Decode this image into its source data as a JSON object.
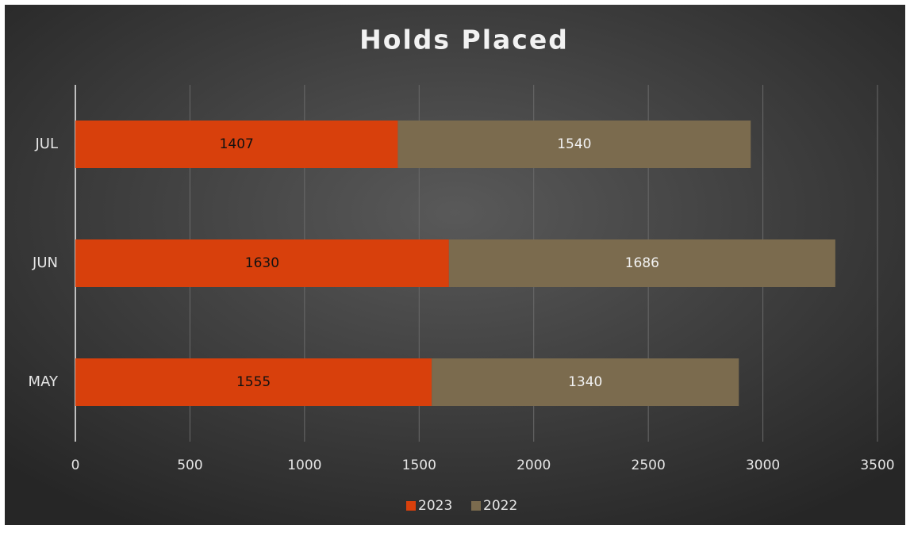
{
  "chart_data": {
    "type": "stacked-barh",
    "title": "Holds Placed",
    "categories": [
      "MAY",
      "JUN",
      "JUL"
    ],
    "series": [
      {
        "name": "2023",
        "color": "#d8400c",
        "values": [
          1555,
          1630,
          1407
        ]
      },
      {
        "name": "2022",
        "color": "#7b6b4e",
        "values": [
          1340,
          1686,
          1540
        ]
      }
    ],
    "xlim": [
      0,
      3500
    ],
    "xticks": [
      0,
      500,
      1000,
      1500,
      2000,
      2500,
      3000,
      3500
    ],
    "grid": true,
    "legend": "bottom"
  }
}
